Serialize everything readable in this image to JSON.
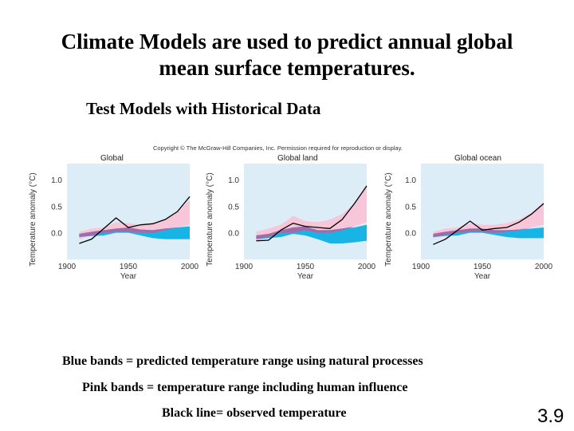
{
  "slide": {
    "title_line1": "Climate Models are used to predict annual global",
    "title_line2": "mean surface temperatures.",
    "subtitle": "Test Models with Historical Data",
    "copyright": "Copyright © The McGraw-Hill Companies, Inc. Permission required for reproduction or display.",
    "legend": {
      "blue": "Blue bands = predicted temperature range using natural processes",
      "pink": "Pink bands = temperature range including human influence",
      "black": "Black line= observed temperature"
    },
    "slide_number": "3.9"
  },
  "colors": {
    "plot_background": "#dcedf8",
    "blue_band": "#18b4e6",
    "pink_band": "#f7c7d9",
    "overlap_band": "#a46aa8",
    "observed_line": "#000000"
  },
  "chart_data": [
    {
      "type": "area",
      "title": "Global",
      "xlabel": "Year",
      "ylabel": "Temperature anomaly (°C)",
      "xlim": [
        1900,
        2000
      ],
      "ylim": [
        -0.5,
        1.3
      ],
      "xticks": [
        1900,
        1950,
        2000
      ],
      "yticks": [
        "1.0",
        "0.5",
        "0.0"
      ],
      "band_x": [
        1910,
        1920,
        1930,
        1940,
        1950,
        1960,
        1970,
        1980,
        1990,
        2000
      ],
      "natural_band": {
        "lower": [
          -0.08,
          -0.06,
          -0.05,
          0.0,
          0.0,
          -0.05,
          -0.1,
          -0.12,
          -0.12,
          -0.12
        ],
        "upper": [
          -0.02,
          0.02,
          0.05,
          0.08,
          0.1,
          0.06,
          0.05,
          0.08,
          0.1,
          0.12
        ]
      },
      "human_band": {
        "lower": [
          -0.12,
          -0.05,
          0.0,
          0.02,
          0.02,
          0.0,
          0.0,
          0.05,
          0.1,
          0.15
        ],
        "upper": [
          0.02,
          0.08,
          0.1,
          0.2,
          0.18,
          0.15,
          0.18,
          0.25,
          0.4,
          0.62
        ]
      },
      "observed": {
        "x": [
          1910,
          1920,
          1940,
          1950,
          1960,
          1970,
          1980,
          1990,
          2000
        ],
        "y": [
          -0.2,
          -0.12,
          0.28,
          0.1,
          0.15,
          0.17,
          0.25,
          0.4,
          0.68
        ]
      }
    },
    {
      "type": "area",
      "title": "Global land",
      "xlabel": "Year",
      "ylabel": "Temperature anomaly (°C)",
      "xlim": [
        1900,
        2000
      ],
      "ylim": [
        -0.5,
        1.3
      ],
      "xticks": [
        1900,
        1950,
        2000
      ],
      "yticks": [
        "1.0",
        "0.5",
        "0.0"
      ],
      "band_x": [
        1910,
        1920,
        1930,
        1940,
        1950,
        1960,
        1970,
        1980,
        1990,
        2000
      ],
      "natural_band": {
        "lower": [
          -0.12,
          -0.1,
          -0.08,
          -0.02,
          -0.05,
          -0.12,
          -0.2,
          -0.2,
          -0.18,
          -0.15
        ],
        "upper": [
          -0.05,
          -0.02,
          0.05,
          0.1,
          0.12,
          0.05,
          0.05,
          0.08,
          0.1,
          0.15
        ]
      },
      "human_band": {
        "lower": [
          -0.15,
          -0.08,
          0.0,
          0.0,
          0.05,
          0.0,
          0.0,
          0.05,
          0.12,
          0.2
        ],
        "upper": [
          0.02,
          0.08,
          0.15,
          0.32,
          0.22,
          0.2,
          0.25,
          0.35,
          0.55,
          0.92
        ]
      },
      "observed": {
        "x": [
          1910,
          1920,
          1930,
          1940,
          1950,
          1960,
          1970,
          1980,
          1990,
          2000
        ],
        "y": [
          -0.15,
          -0.14,
          0.05,
          0.18,
          0.12,
          0.1,
          0.08,
          0.25,
          0.55,
          0.88
        ]
      }
    },
    {
      "type": "area",
      "title": "Global ocean",
      "xlabel": "Year",
      "ylabel": "Temperature anomaly (°C)",
      "xlim": [
        1900,
        2000
      ],
      "ylim": [
        -0.5,
        1.3
      ],
      "xticks": [
        1900,
        1950,
        2000
      ],
      "yticks": [
        "1.0",
        "0.5",
        "0.0"
      ],
      "band_x": [
        1910,
        1920,
        1930,
        1940,
        1950,
        1960,
        1970,
        1980,
        1990,
        2000
      ],
      "natural_band": {
        "lower": [
          -0.08,
          -0.06,
          -0.05,
          0.0,
          0.0,
          -0.04,
          -0.08,
          -0.1,
          -0.1,
          -0.1
        ],
        "upper": [
          -0.02,
          0.02,
          0.05,
          0.08,
          0.08,
          0.05,
          0.05,
          0.06,
          0.08,
          0.1
        ]
      },
      "human_band": {
        "lower": [
          -0.1,
          -0.04,
          0.0,
          0.02,
          0.02,
          0.0,
          0.02,
          0.05,
          0.1,
          0.15
        ],
        "upper": [
          0.02,
          0.08,
          0.1,
          0.18,
          0.15,
          0.15,
          0.18,
          0.25,
          0.38,
          0.58
        ]
      },
      "observed": {
        "x": [
          1910,
          1920,
          1930,
          1940,
          1950,
          1960,
          1970,
          1980,
          1990,
          2000
        ],
        "y": [
          -0.22,
          -0.12,
          0.05,
          0.22,
          0.05,
          0.08,
          0.1,
          0.2,
          0.35,
          0.55
        ]
      }
    }
  ]
}
